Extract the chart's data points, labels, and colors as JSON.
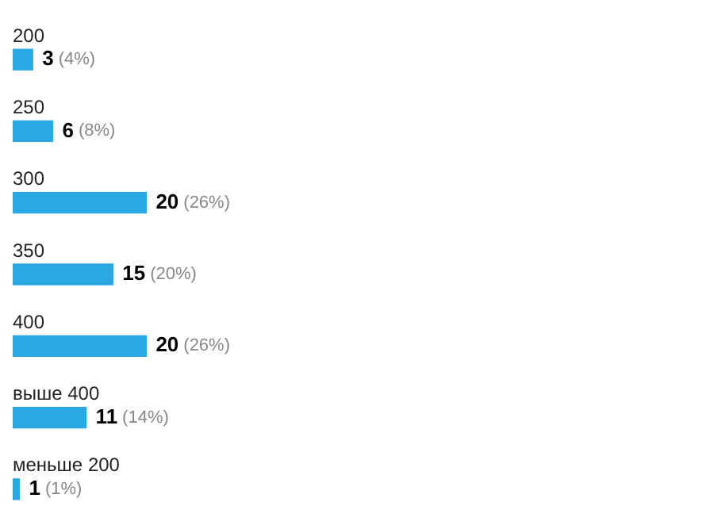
{
  "chart_data": {
    "type": "bar",
    "orientation": "horizontal",
    "categories": [
      "200",
      "250",
      "300",
      "350",
      "400",
      "выше 400",
      "меньше 200"
    ],
    "values": [
      3,
      6,
      20,
      15,
      20,
      11,
      1
    ],
    "color": "#29a8e2",
    "value_labels": [
      "3 (4%)",
      "6 (8%)",
      "20 (26%)",
      "15 (20%)",
      "20 (26%)",
      "11 (14%)",
      "1 (1%)"
    ],
    "legend": false,
    "tick_labels": false
  }
}
